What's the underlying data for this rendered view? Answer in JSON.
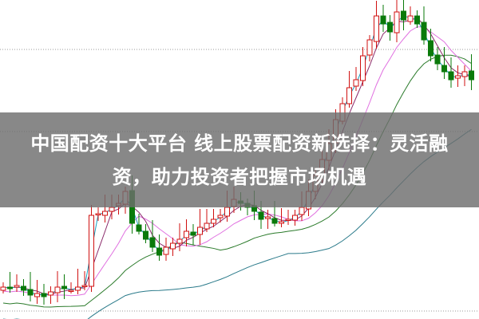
{
  "headline": "中国配资十大平台 线上股票配资新选择：灵活融资，助力投资者把握市场机遇",
  "colors": {
    "up": "#d01010",
    "down": "#0a7a0a",
    "ma5": "#1aa0c0",
    "ma10": "#8a2a6a",
    "ma20": "#e070e0",
    "ma60": "#2a7a2a",
    "ma120": "#2a7a8a",
    "overlay": "#6e6e6e"
  },
  "chart_data": {
    "type": "candlestick",
    "closes": [
      40,
      38,
      42,
      36,
      30,
      32,
      28,
      34,
      40,
      38,
      36,
      40,
      42,
      130,
      132,
      135,
      140,
      145,
      160,
      120,
      110,
      100,
      90,
      80,
      90,
      95,
      100,
      110,
      105,
      115,
      120,
      125,
      130,
      140,
      150,
      145,
      140,
      135,
      125,
      128,
      120,
      122,
      125,
      130,
      140,
      160,
      180,
      200,
      220,
      250,
      270,
      290,
      300,
      330,
      350,
      380,
      370,
      360,
      385,
      375,
      380,
      370,
      350,
      330,
      320,
      310,
      300,
      305,
      310,
      300
    ],
    "moving_averages": [
      "ma5",
      "ma10",
      "ma20",
      "ma60",
      "ma120"
    ],
    "grid": "dotted horizontal"
  }
}
